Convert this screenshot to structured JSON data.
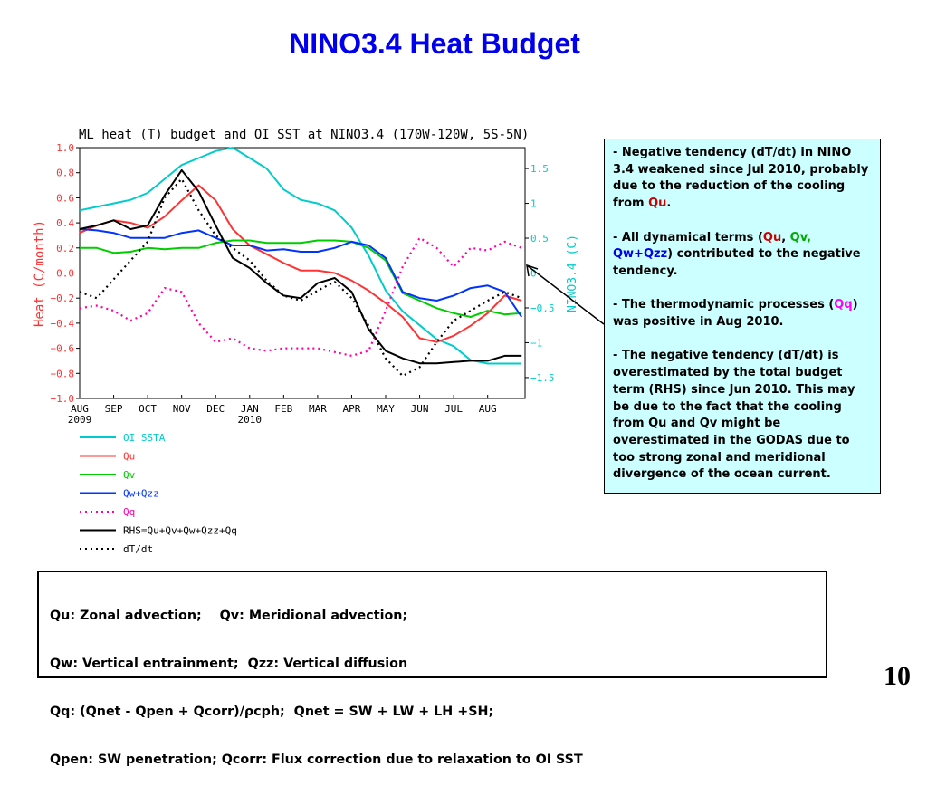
{
  "slide": {
    "title": "NINO3.4 Heat Budget",
    "page_number": "10"
  },
  "chart_data": {
    "type": "line",
    "title": "ML heat (T) budget and OI SST at NINO3.4 (170W-120W, 5S-5N)",
    "ylabel": "Heat (C/month)",
    "y2label": "NINO3.4 (C)",
    "ylim": [
      -1.0,
      1.0
    ],
    "y2lim": [
      -1.8,
      1.8
    ],
    "yticks": [
      -1.0,
      -0.8,
      -0.6,
      -0.4,
      -0.2,
      0.0,
      0.2,
      0.4,
      0.6,
      0.8,
      1.0
    ],
    "ytick_labels": [
      "−1.0",
      "−0.8",
      "−0.6",
      "−0.4",
      "−0.2",
      "0.0",
      "0.2",
      "0.4",
      "0.6",
      "0.8",
      "1.0"
    ],
    "y2ticks": [
      -1.5,
      -1,
      -0.5,
      0,
      0.5,
      1,
      1.5
    ],
    "y2tick_labels": [
      "−1.5",
      "−1",
      "−0.5",
      "0",
      "0.5",
      "1",
      "1.5"
    ],
    "xlim": [
      0,
      13.1
    ],
    "xtick_labels": [
      "AUG\n2009",
      "SEP",
      "OCT",
      "NOV",
      "DEC",
      "JAN\n2010",
      "FEB",
      "MAR",
      "APR",
      "MAY",
      "JUN",
      "JUL",
      "AUG"
    ],
    "zero_line": true,
    "x": [
      0,
      0.5,
      1,
      1.5,
      2,
      2.5,
      3,
      3.5,
      4,
      4.5,
      5,
      5.5,
      6,
      6.5,
      7,
      7.5,
      8,
      8.5,
      9,
      9.5,
      10,
      10.5,
      11,
      11.5,
      12,
      12.5,
      13
    ],
    "series": [
      {
        "name": "OI SSTA",
        "axis": "right",
        "color": "#00cccc",
        "dash": false,
        "values": [
          0.9,
          0.95,
          1.0,
          1.05,
          1.15,
          1.35,
          1.55,
          1.65,
          1.75,
          1.8,
          1.65,
          1.5,
          1.2,
          1.05,
          1.0,
          0.9,
          0.65,
          0.25,
          -0.25,
          -0.55,
          -0.75,
          -0.95,
          -1.05,
          -1.25,
          -1.3,
          -1.3,
          -1.3
        ]
      },
      {
        "name": "Qu",
        "axis": "left",
        "color": "#ff3333",
        "dash": false,
        "values": [
          0.32,
          0.38,
          0.42,
          0.4,
          0.36,
          0.45,
          0.58,
          0.7,
          0.58,
          0.35,
          0.22,
          0.15,
          0.08,
          0.02,
          0.02,
          0.0,
          -0.06,
          -0.14,
          -0.24,
          -0.35,
          -0.52,
          -0.55,
          -0.5,
          -0.42,
          -0.32,
          -0.18,
          -0.22
        ]
      },
      {
        "name": "Qv",
        "axis": "left",
        "color": "#00cc00",
        "dash": false,
        "values": [
          0.2,
          0.2,
          0.16,
          0.17,
          0.2,
          0.19,
          0.2,
          0.2,
          0.24,
          0.26,
          0.26,
          0.24,
          0.24,
          0.24,
          0.26,
          0.26,
          0.25,
          0.2,
          0.1,
          -0.16,
          -0.22,
          -0.28,
          -0.32,
          -0.35,
          -0.3,
          -0.33,
          -0.32
        ]
      },
      {
        "name": "Qw+Qzz",
        "axis": "left",
        "color": "#0033ff",
        "dash": false,
        "values": [
          0.35,
          0.34,
          0.32,
          0.28,
          0.28,
          0.28,
          0.32,
          0.34,
          0.28,
          0.22,
          0.22,
          0.18,
          0.19,
          0.17,
          0.17,
          0.2,
          0.25,
          0.22,
          0.12,
          -0.15,
          -0.2,
          -0.22,
          -0.18,
          -0.12,
          -0.1,
          -0.15,
          -0.35
        ]
      },
      {
        "name": "Qq",
        "axis": "left",
        "color": "#ff00aa",
        "dash": true,
        "values": [
          -0.28,
          -0.26,
          -0.3,
          -0.38,
          -0.32,
          -0.12,
          -0.15,
          -0.4,
          -0.55,
          -0.52,
          -0.6,
          -0.62,
          -0.6,
          -0.6,
          -0.6,
          -0.63,
          -0.66,
          -0.62,
          -0.3,
          0.05,
          0.28,
          0.2,
          0.05,
          0.2,
          0.18,
          0.25,
          0.2
        ]
      },
      {
        "name": "RHS=Qu+Qv+Qw+Qzz+Qq",
        "axis": "left",
        "color": "#000000",
        "dash": false,
        "values": [
          0.35,
          0.38,
          0.42,
          0.35,
          0.38,
          0.62,
          0.82,
          0.65,
          0.38,
          0.12,
          0.04,
          -0.08,
          -0.18,
          -0.2,
          -0.08,
          -0.04,
          -0.15,
          -0.45,
          -0.62,
          -0.68,
          -0.72,
          -0.72,
          -0.71,
          -0.7,
          -0.7,
          -0.66,
          -0.66
        ]
      },
      {
        "name": "dT/dt",
        "axis": "left",
        "color": "#000000",
        "dash": true,
        "values": [
          -0.15,
          -0.2,
          -0.05,
          0.1,
          0.25,
          0.6,
          0.75,
          0.5,
          0.3,
          0.2,
          0.1,
          -0.06,
          -0.18,
          -0.22,
          -0.14,
          -0.07,
          -0.2,
          -0.42,
          -0.68,
          -0.82,
          -0.75,
          -0.55,
          -0.38,
          -0.3,
          -0.22,
          -0.15,
          -0.2
        ]
      }
    ]
  },
  "notes": {
    "p1_a": "Negative tendency (dT/dt) in NINO 3.4 weakened since Jul 2010, probably due to the reduction of the cooling from ",
    "p1_qu": "Qu",
    "p1_end": ".",
    "p2_a": "All dynamical terms (",
    "p2_qu": "Qu",
    "p2_sep": ", ",
    "p2_qv": "Qv,",
    "p2_qwqzz": "Qw+Qzz",
    "p2_end": ") contributed to the negative tendency.",
    "p3_a": "The thermodynamic processes (",
    "p3_qq": "Qq",
    "p3_end": ") was positive  in Aug 2010.",
    "p4": "The negative tendency (dT/dt) is overestimated by the total budget term (RHS) since Jun 2010.  This may be due to the fact that the cooling from Qu and Qv might be overestimated in the GODAS due to too strong zonal and meridional divergence of the ocean current."
  },
  "definitions": [
    "Qu: Zonal advection;    Qv: Meridional advection;",
    "Qw: Vertical entrainment;  Qzz: Vertical diffusion",
    "Qq: (Qnet - Qpen + Qcorr)/ρcph;  Qnet = SW + LW + LH +SH;",
    "Qpen: SW penetration; Qcorr: Flux correction due to relaxation to OI SST"
  ]
}
